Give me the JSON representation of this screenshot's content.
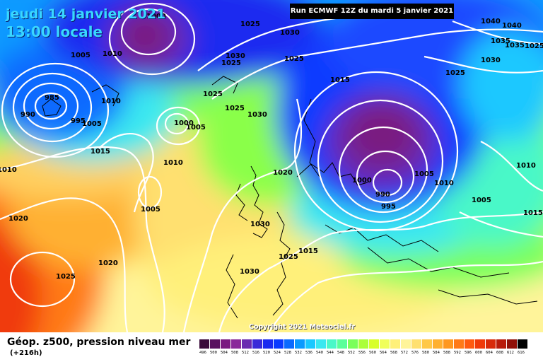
{
  "header": {
    "date_line": "jeudi 14 janvier 2021",
    "time_line": "13:00 locale",
    "run_info": "Run ECMWF 12Z du mardi 5 janvier 2021"
  },
  "footer": {
    "title": "Géop. z500, pression niveau mer",
    "subtitle": "(+216h)",
    "copyright": "Copyright 2021 Meteociel.fr"
  },
  "legend": {
    "values": [
      "496",
      "500",
      "504",
      "508",
      "512",
      "516",
      "520",
      "524",
      "528",
      "532",
      "536",
      "540",
      "544",
      "548",
      "552",
      "556",
      "560",
      "564",
      "568",
      "572",
      "576",
      "580",
      "584",
      "588",
      "592",
      "596",
      "600",
      "604",
      "608",
      "612",
      "616"
    ],
    "colors": [
      "#3a0a3a",
      "#5a1060",
      "#7a1a80",
      "#8a2a9a",
      "#6a2ab0",
      "#3a2ad8",
      "#1a2af0",
      "#0a3aff",
      "#0a6aff",
      "#0a9aff",
      "#1ac8ff",
      "#3ae8f0",
      "#4af8c8",
      "#5aff9a",
      "#7aff5a",
      "#aaff3a",
      "#d8ff2a",
      "#f0ff5a",
      "#fff07a",
      "#fff49a",
      "#ffe070",
      "#ffc848",
      "#ffb030",
      "#ff9820",
      "#ff7a18",
      "#ff5a10",
      "#f03a0a",
      "#d82a0a",
      "#b81a0a",
      "#901008",
      "#000000"
    ]
  },
  "pressure_labels": [
    {
      "text": "1000",
      "name": "label-1000-north"
    },
    {
      "text": "1005",
      "name": "label-1005-nw"
    },
    {
      "text": "1010",
      "name": "label-1010-north"
    },
    {
      "text": "1025",
      "name": "label-1025-north"
    },
    {
      "text": "1030",
      "name": "label-1030-north"
    },
    {
      "text": "1030",
      "name": "label-1030-north2"
    },
    {
      "text": "1025",
      "name": "label-1025-north2"
    },
    {
      "text": "1025",
      "name": "label-1025-north3"
    },
    {
      "text": "1025",
      "name": "label-1025-sc"
    },
    {
      "text": "985",
      "name": "label-985"
    },
    {
      "text": "990",
      "name": "label-990-west"
    },
    {
      "text": "1010",
      "name": "label-1010-west"
    },
    {
      "text": "995",
      "name": "label-995-west"
    },
    {
      "text": "1005",
      "name": "label-1005-west"
    },
    {
      "text": "1000",
      "name": "label-1000-mid"
    },
    {
      "text": "1005",
      "name": "label-1005-mid"
    },
    {
      "text": "1025",
      "name": "label-1025-mid"
    },
    {
      "text": "1030",
      "name": "label-1030-mid"
    },
    {
      "text": "1015",
      "name": "label-1015-west"
    },
    {
      "text": "1010",
      "name": "label-1010-edge"
    },
    {
      "text": "1010",
      "name": "label-1010-atl"
    },
    {
      "text": "1005",
      "name": "label-1005-atl"
    },
    {
      "text": "1020",
      "name": "label-1020-uk"
    },
    {
      "text": "1020",
      "name": "label-1020-atl"
    },
    {
      "text": "1030",
      "name": "label-1030-france"
    },
    {
      "text": "1025",
      "name": "label-1025-atl"
    },
    {
      "text": "1020",
      "name": "label-1020-atl2"
    },
    {
      "text": "1025",
      "name": "label-1025-fr"
    },
    {
      "text": "1015",
      "name": "label-1015-alps"
    },
    {
      "text": "1030",
      "name": "label-1030-iberia"
    },
    {
      "text": "1015",
      "name": "label-1015-scand"
    },
    {
      "text": "1000",
      "name": "label-1000-east"
    },
    {
      "text": "990",
      "name": "label-990-east"
    },
    {
      "text": "995",
      "name": "label-995-east"
    },
    {
      "text": "1005",
      "name": "label-1005-east"
    },
    {
      "text": "1010",
      "name": "label-1010-east"
    },
    {
      "text": "1005",
      "name": "label-1005-east2"
    },
    {
      "text": "1010",
      "name": "label-1010-far-east"
    },
    {
      "text": "1015",
      "name": "label-1015-far-east"
    },
    {
      "text": "1025",
      "name": "label-1025-ne"
    },
    {
      "text": "1030",
      "name": "label-1030-ne"
    },
    {
      "text": "1035",
      "name": "label-1035-ne"
    },
    {
      "text": "1040",
      "name": "label-1040-ne"
    },
    {
      "text": "1035",
      "name": "label-1035-ne2"
    },
    {
      "text": "1025",
      "name": "label-1025-ne2"
    },
    {
      "text": "1040",
      "name": "label-1040-ne2"
    }
  ]
}
